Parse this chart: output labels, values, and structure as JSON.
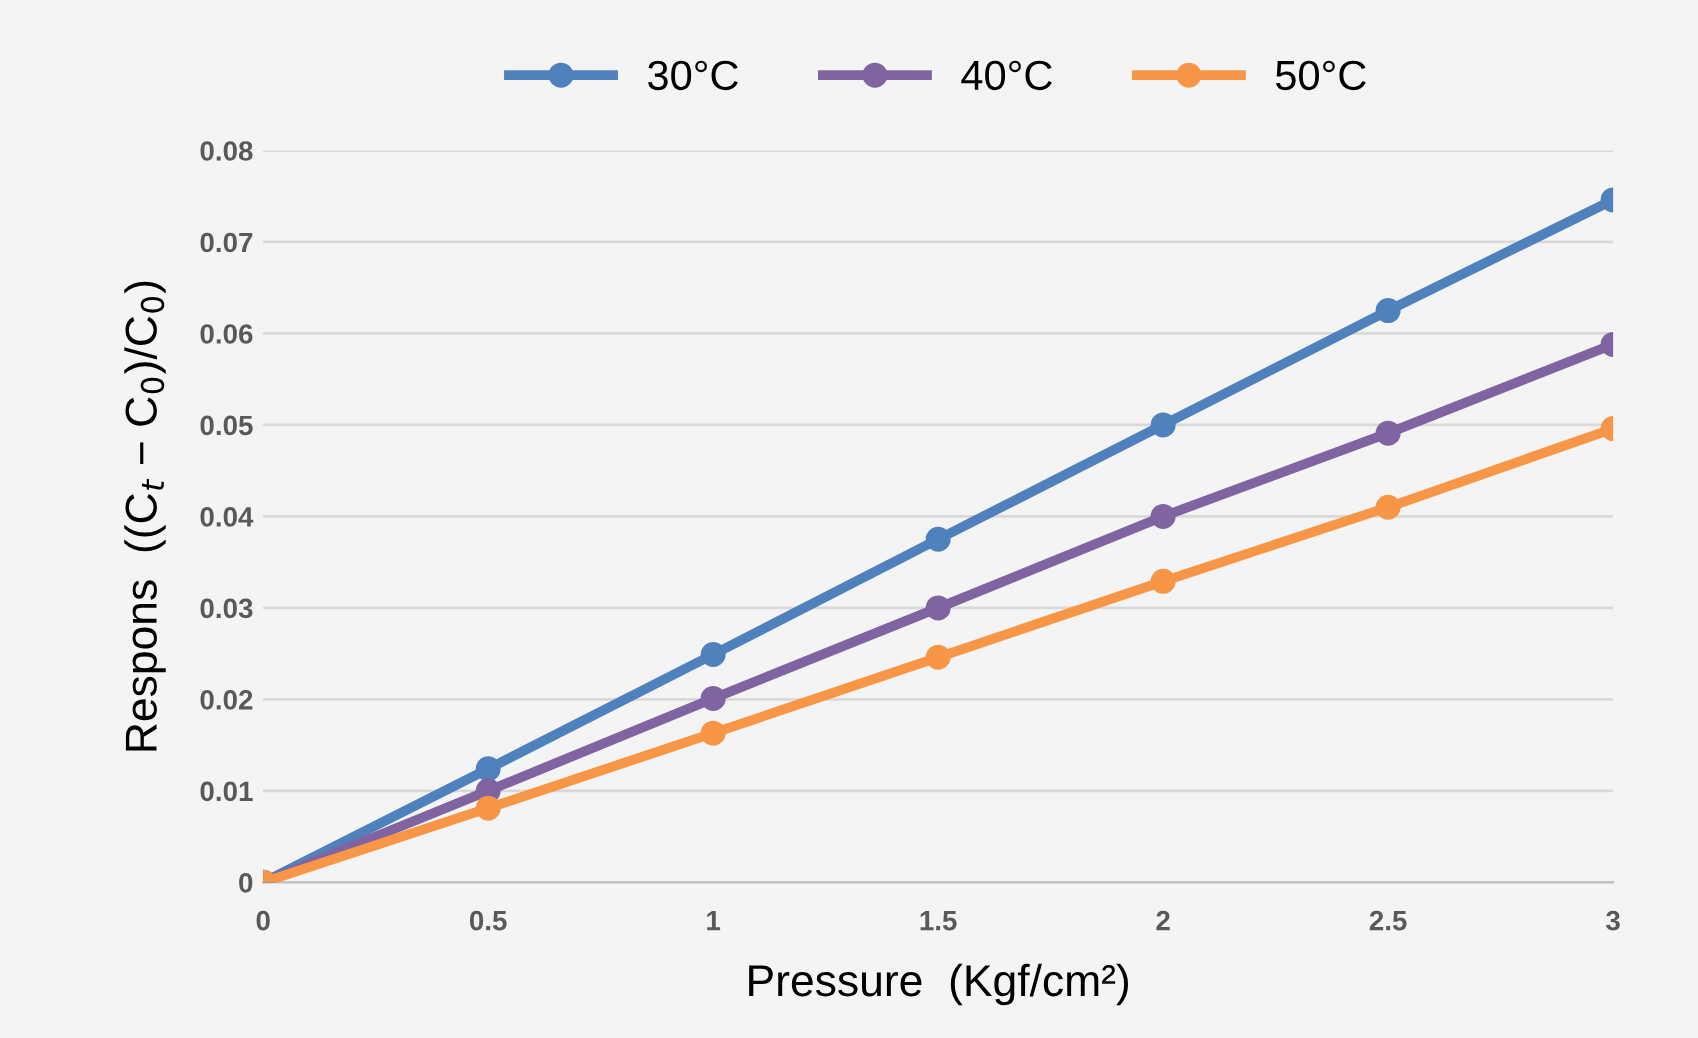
{
  "chart_data": {
    "type": "line",
    "xlabel": "Pressure  (Kgf/cm²)",
    "ylabel": "Respons  ((C$_{t}$ − C$_{0}$)/C$_{0}$)",
    "x": [
      0,
      0.5,
      1,
      1.5,
      2,
      2.5,
      3
    ],
    "series": [
      {
        "name": "30°C",
        "color": "#4f81bd",
        "values": [
          0,
          0.0124,
          0.0249,
          0.0375,
          0.05,
          0.0625,
          0.0746
        ]
      },
      {
        "name": "40°C",
        "color": "#8064a2",
        "values": [
          0,
          0.01,
          0.0201,
          0.03,
          0.04,
          0.0491,
          0.0588
        ]
      },
      {
        "name": "50°C",
        "color": "#f79646",
        "values": [
          0,
          0.0081,
          0.0163,
          0.0246,
          0.0329,
          0.041,
          0.0496
        ]
      }
    ],
    "xlim": [
      0,
      3
    ],
    "xticks": [
      0,
      0.5,
      1,
      1.5,
      2,
      2.5,
      3
    ],
    "ylim": [
      0,
      0.08
    ],
    "yticks": [
      0,
      0.01,
      0.02,
      0.03,
      0.04,
      0.05,
      0.06,
      0.07,
      0.08
    ],
    "grid": "y",
    "legend": "top",
    "marker": "circle",
    "line_style": "solid"
  }
}
